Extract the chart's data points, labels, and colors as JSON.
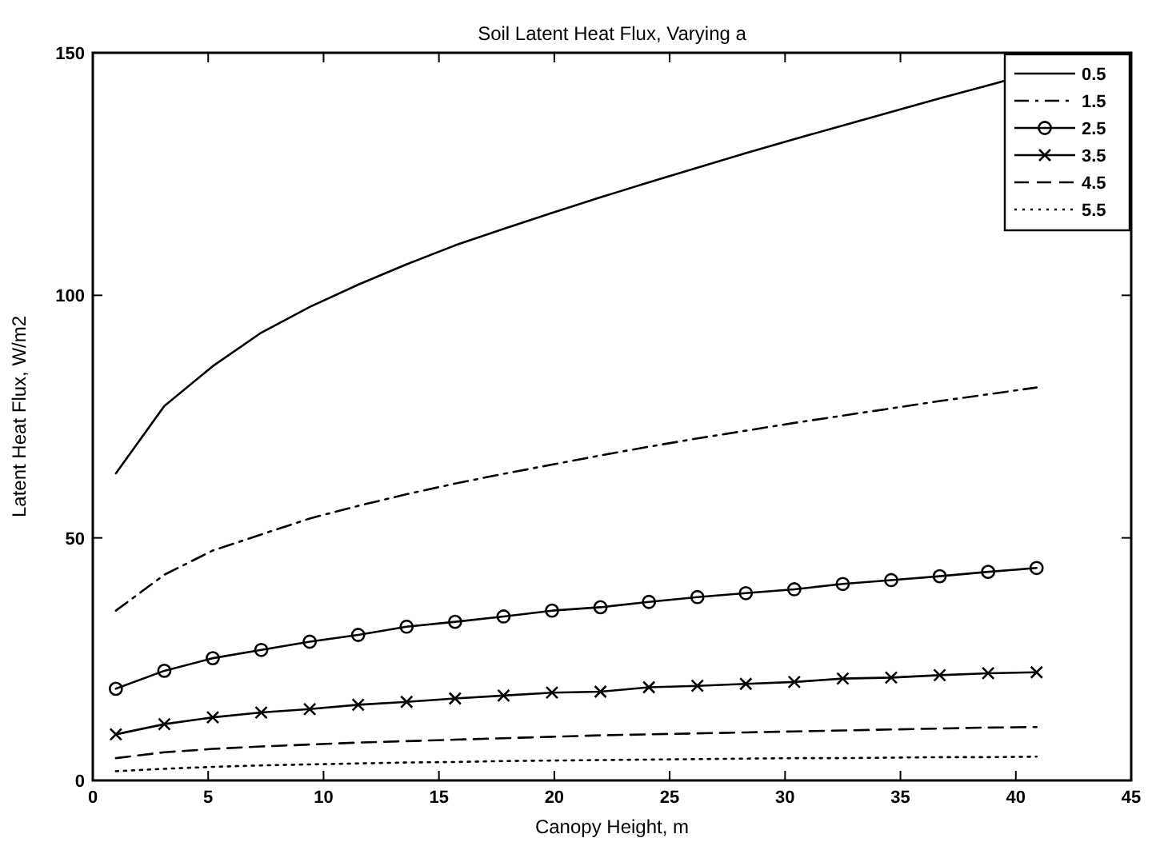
{
  "chart_data": {
    "type": "line",
    "title": "Soil Latent Heat Flux, Varying a",
    "xlabel": "Canopy Height, m",
    "ylabel": "Latent Heat Flux, W/m2",
    "x": [
      1,
      3.1,
      5.2,
      7.3,
      9.4,
      11.5,
      13.6,
      15.7,
      17.8,
      19.9,
      22,
      24.1,
      26.2,
      28.3,
      30.4,
      32.5,
      34.6,
      36.7,
      38.8,
      40.9
    ],
    "xlim": [
      0,
      45
    ],
    "xticks": [
      0,
      5,
      10,
      15,
      20,
      25,
      30,
      35,
      40,
      45
    ],
    "ylim": [
      0,
      150
    ],
    "yticks": [
      0,
      50,
      100,
      150
    ],
    "grid": false,
    "legend": "top right",
    "series": [
      {
        "name": "0.5",
        "color": "#000000",
        "line_style": "solid",
        "marker": "none",
        "values": [
          63.3,
          77.2,
          85.4,
          92.3,
          97.6,
          102.2,
          106.4,
          110.3,
          113.7,
          117,
          120.2,
          123.3,
          126.3,
          129.3,
          132.2,
          135,
          137.8,
          140.6,
          143.3,
          146
        ]
      },
      {
        "name": "1.5",
        "color": "#000000",
        "line_style": "dashdot",
        "marker": "none",
        "values": [
          35,
          42.4,
          47.4,
          50.7,
          54,
          56.6,
          59,
          61.2,
          63.2,
          65.1,
          67,
          68.8,
          70.5,
          72.1,
          73.7,
          75.2,
          76.7,
          78.2,
          79.6,
          81
        ]
      },
      {
        "name": "2.5",
        "color": "#000000",
        "line_style": "solid",
        "marker": "circle",
        "values": [
          18.9,
          22.6,
          25.2,
          26.9,
          28.6,
          30,
          31.7,
          32.7,
          33.8,
          35,
          35.7,
          36.8,
          37.8,
          38.6,
          39.4,
          40.5,
          41.3,
          42.1,
          43,
          43.8
        ]
      },
      {
        "name": "3.5",
        "color": "#000000",
        "line_style": "solid",
        "marker": "cross",
        "values": [
          9.5,
          11.6,
          13,
          14,
          14.7,
          15.6,
          16.2,
          16.9,
          17.5,
          18.1,
          18.3,
          19.2,
          19.5,
          19.9,
          20.3,
          21,
          21.2,
          21.7,
          22.1,
          22.3
        ]
      },
      {
        "name": "4.5",
        "color": "#000000",
        "line_style": "dashed",
        "marker": "none",
        "values": [
          4.6,
          5.8,
          6.5,
          7,
          7.4,
          7.8,
          8.1,
          8.4,
          8.7,
          9,
          9.3,
          9.5,
          9.7,
          9.9,
          10.1,
          10.3,
          10.5,
          10.7,
          10.9,
          11
        ]
      },
      {
        "name": "5.5",
        "color": "#000000",
        "line_style": "dotted",
        "marker": "none",
        "values": [
          1.9,
          2.4,
          2.8,
          3.1,
          3.3,
          3.5,
          3.7,
          3.8,
          4,
          4.1,
          4.2,
          4.3,
          4.4,
          4.5,
          4.6,
          4.6,
          4.7,
          4.8,
          4.8,
          4.9
        ]
      }
    ]
  }
}
